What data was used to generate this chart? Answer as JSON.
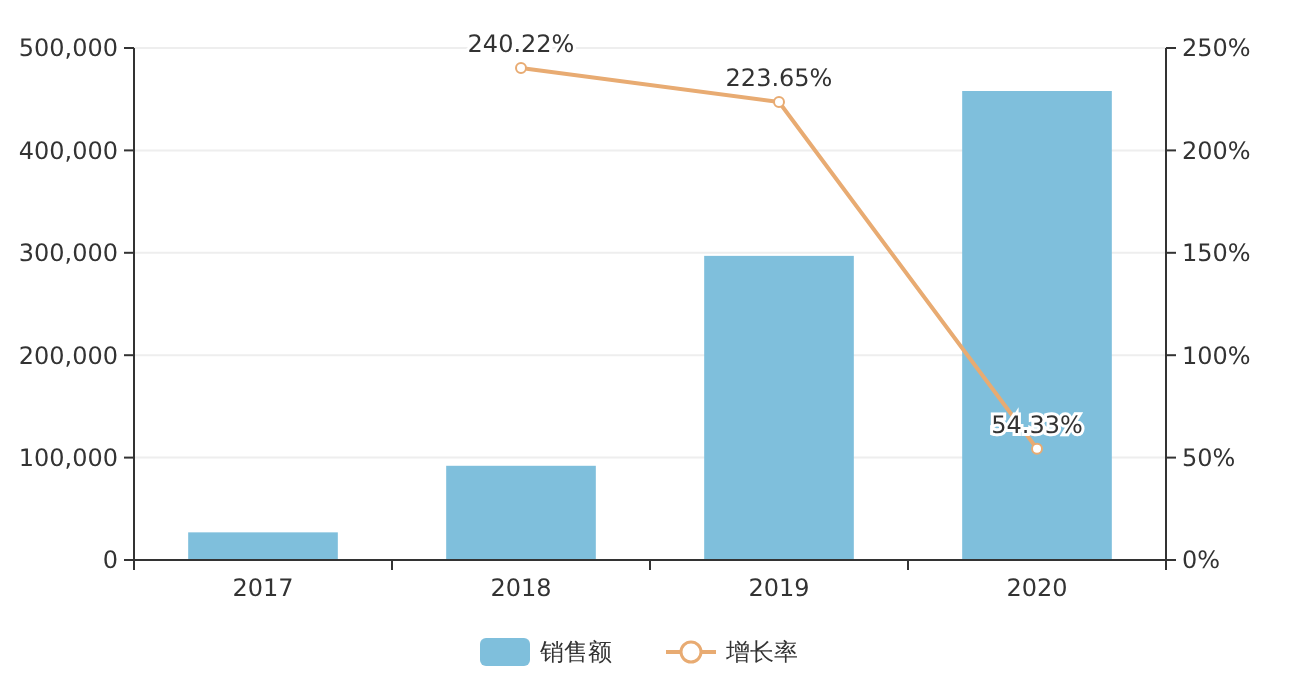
{
  "chart_data": {
    "type": "bar",
    "categories": [
      "2017",
      "2018",
      "2019",
      "2020"
    ],
    "series": [
      {
        "name": "销售额",
        "color": "#7fbfdc",
        "values": [
          27000,
          92000,
          297000,
          458000
        ]
      },
      {
        "name": "增长率",
        "type": "line",
        "axis": "y2",
        "color": "#e8ab72",
        "marker": "circle",
        "values": [
          null,
          240.22,
          223.65,
          54.33
        ],
        "value_labels": [
          null,
          "240.22%",
          "223.65%",
          "54.33%"
        ]
      }
    ],
    "ylim": [
      0,
      500000
    ],
    "yticks": [
      {
        "value": 0,
        "label": "0"
      },
      {
        "value": 100000,
        "label": "100,000"
      },
      {
        "value": 200000,
        "label": "200,000"
      },
      {
        "value": 300000,
        "label": "300,000"
      },
      {
        "value": 400000,
        "label": "400,000"
      },
      {
        "value": 500000,
        "label": "500,000"
      }
    ],
    "y2lim": [
      0,
      250
    ],
    "y2ticks": [
      {
        "value": 0,
        "label": "0%"
      },
      {
        "value": 50,
        "label": "50%"
      },
      {
        "value": 100,
        "label": "100%"
      },
      {
        "value": 150,
        "label": "150%"
      },
      {
        "value": 200,
        "label": "200%"
      },
      {
        "value": 250,
        "label": "250%"
      }
    ],
    "grid": "y",
    "legend": "bottom"
  }
}
